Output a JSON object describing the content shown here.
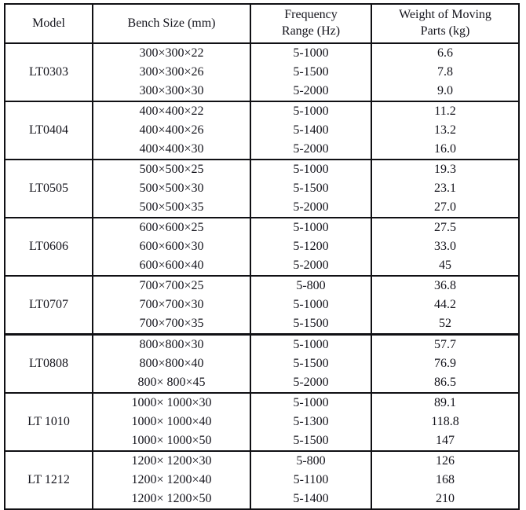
{
  "page": {
    "background_color": "#ffffff",
    "border_color": "#101014",
    "text_color": "#14141c"
  },
  "table": {
    "headers": [
      "Model",
      "Bench Size (mm)",
      "Frequency\nRange (Hz)",
      "Weight of Moving\nParts (kg)"
    ],
    "groups": [
      {
        "model": "LT0303",
        "rows": [
          {
            "size": "300×300×22",
            "freq": "5-1000",
            "weight": "6.6"
          },
          {
            "size": "300×300×26",
            "freq": "5-1500",
            "weight": "7.8"
          },
          {
            "size": "300×300×30",
            "freq": "5-2000",
            "weight": "9.0"
          }
        ]
      },
      {
        "model": "LT0404",
        "rows": [
          {
            "size": "400×400×22",
            "freq": "5-1000",
            "weight": "11.2"
          },
          {
            "size": "400×400×26",
            "freq": "5-1400",
            "weight": "13.2"
          },
          {
            "size": "400×400×30",
            "freq": "5-2000",
            "weight": "16.0"
          }
        ]
      },
      {
        "model": "LT0505",
        "rows": [
          {
            "size": "500×500×25",
            "freq": "5-1000",
            "weight": "19.3"
          },
          {
            "size": "500×500×30",
            "freq": "5-1500",
            "weight": "23.1"
          },
          {
            "size": "500×500×35",
            "freq": "5-2000",
            "weight": "27.0"
          }
        ]
      },
      {
        "model": "LT0606",
        "rows": [
          {
            "size": "600×600×25",
            "freq": "5-1000",
            "weight": "27.5"
          },
          {
            "size": "600×600×30",
            "freq": "5-1200",
            "weight": "33.0"
          },
          {
            "size": "600×600×40",
            "freq": "5-2000",
            "weight": "45"
          }
        ]
      },
      {
        "model": "LT0707",
        "rows": [
          {
            "size": "700×700×25",
            "freq": "5-800",
            "weight": "36.8"
          },
          {
            "size": "700×700×30",
            "freq": "5-1000",
            "weight": "44.2"
          },
          {
            "size": "700×700×35",
            "freq": "5-1500",
            "weight": "52"
          }
        ]
      },
      {
        "model": "LT0808",
        "rows": [
          {
            "size": "800×800×30",
            "freq": "5-1000",
            "weight": "57.7"
          },
          {
            "size": "800×800×40",
            "freq": "5-1500",
            "weight": "76.9"
          },
          {
            "size": "800× 800×45",
            "freq": "5-2000",
            "weight": "86.5"
          }
        ]
      },
      {
        "model": "LT 1010",
        "rows": [
          {
            "size": "1000× 1000×30",
            "freq": "5-1000",
            "weight": "89.1"
          },
          {
            "size": "1000× 1000×40",
            "freq": "5-1300",
            "weight": "118.8"
          },
          {
            "size": "1000× 1000×50",
            "freq": "5-1500",
            "weight": "147"
          }
        ]
      },
      {
        "model": "LT 1212",
        "rows": [
          {
            "size": "1200× 1200×30",
            "freq": "5-800",
            "weight": "126"
          },
          {
            "size": "1200× 1200×40",
            "freq": "5-1100",
            "weight": "168"
          },
          {
            "size": "1200× 1200×50",
            "freq": "5-1400",
            "weight": "210"
          }
        ]
      }
    ]
  }
}
